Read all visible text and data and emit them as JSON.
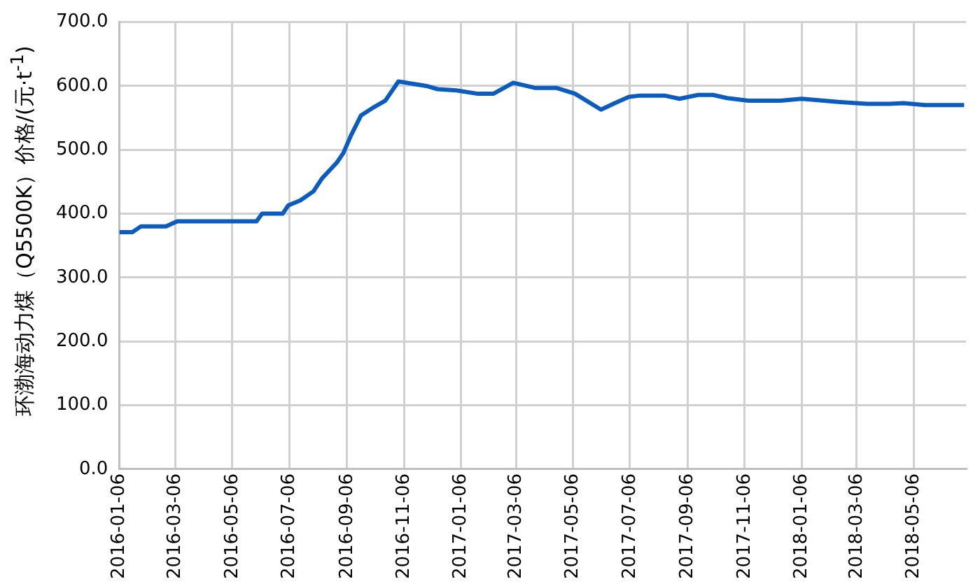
{
  "chart_data": {
    "type": "line",
    "ylabel": "环渤海动力煤（Q5500K）价格/(元·t$^{-1}$)",
    "x": [
      "2016-01-06",
      "2016-01-20",
      "2016-01-29",
      "2016-02-25",
      "2016-03-08",
      "2016-06-01",
      "2016-06-07",
      "2016-06-29",
      "2016-07-05",
      "2016-07-18",
      "2016-08-01",
      "2016-08-10",
      "2016-08-26",
      "2016-09-02",
      "2016-09-10",
      "2016-09-21",
      "2016-10-05",
      "2016-10-17",
      "2016-10-31",
      "2016-11-30",
      "2016-12-12",
      "2017-01-01",
      "2017-01-23",
      "2017-02-10",
      "2017-03-03",
      "2017-03-26",
      "2017-04-18",
      "2017-05-08",
      "2017-06-05",
      "2017-06-21",
      "2017-07-05",
      "2017-07-17",
      "2017-08-12",
      "2017-08-28",
      "2017-09-17",
      "2017-10-03",
      "2017-10-18",
      "2017-11-10",
      "2017-12-14",
      "2018-01-06",
      "2018-01-30",
      "2018-02-14",
      "2018-03-17",
      "2018-04-10",
      "2018-04-25",
      "2018-05-18",
      "2018-06-29"
    ],
    "series": [
      {
        "color": "#0b5cc0",
        "values": [
          371,
          371,
          380,
          380,
          388,
          388,
          400,
          400,
          413,
          421,
          435,
          455,
          480,
          495,
          522,
          554,
          567,
          577,
          607,
          600,
          595,
          593,
          588,
          588,
          605,
          597,
          597,
          588,
          563,
          574,
          583,
          585,
          585,
          580,
          586,
          586,
          581,
          577,
          577,
          580,
          577,
          575,
          572,
          572,
          573,
          570,
          570
        ]
      }
    ],
    "xlim": [
      "2016-01-06",
      "2018-07-01"
    ],
    "xticks": [
      "2016-01-06",
      "2016-03-06",
      "2016-05-06",
      "2016-07-06",
      "2016-09-06",
      "2016-11-06",
      "2017-01-06",
      "2017-03-06",
      "2017-05-06",
      "2017-07-06",
      "2017-09-06",
      "2017-11-06",
      "2018-01-06",
      "2018-03-06",
      "2018-05-06"
    ],
    "ylim": [
      0,
      700
    ],
    "yticks": [
      {
        "value": 0,
        "label": "0.0"
      },
      {
        "value": 100,
        "label": "100.0"
      },
      {
        "value": 200,
        "label": "200.0"
      },
      {
        "value": 300,
        "label": "300.0"
      },
      {
        "value": 400,
        "label": "400.0"
      },
      {
        "value": 500,
        "label": "500.0"
      },
      {
        "value": 600,
        "label": "600.0"
      },
      {
        "value": 700,
        "label": "700.0"
      }
    ],
    "grid": true,
    "legend": false,
    "marker": "none",
    "line_style": "solid"
  }
}
